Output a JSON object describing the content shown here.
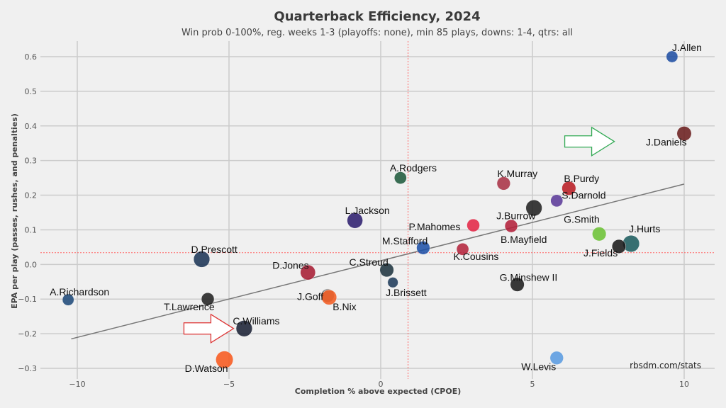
{
  "chart_data": {
    "type": "scatter",
    "title": "Quarterback Efficiency, 2024",
    "subtitle": "Win prob 0-100%, reg. weeks 1-3 (playoffs: none), min 85 plays, downs: 1-4, qtrs: all",
    "xlabel": "Completion % above expected (CPOE)",
    "ylabel": "EPA per play (passes, rushes, and penalties)",
    "xlim": [
      -11.2,
      11.0
    ],
    "ylim": [
      -0.32,
      0.65
    ],
    "xticks": [
      -10,
      -5,
      0,
      5,
      10
    ],
    "yticks": [
      -0.3,
      -0.2,
      -0.1,
      0.0,
      0.1,
      0.2,
      0.3,
      0.4,
      0.5,
      0.6
    ],
    "ytick_labels": [
      "−0.3",
      "−0.2",
      "−0.1",
      "0.0",
      "0.1",
      "0.2",
      "0.3",
      "0.4",
      "0.5",
      "0.6"
    ],
    "xtick_labels": [
      "−10",
      "−5",
      "0",
      "5",
      "10"
    ],
    "grid": true,
    "mean_lines": {
      "x": 0.9,
      "y": 0.034,
      "color": "#ff6666"
    },
    "trend_line": {
      "x1": -10.2,
      "y1": -0.215,
      "x2": 10.0,
      "y2": 0.232,
      "color": "#777777"
    },
    "credit": "rbsdm.com/stats",
    "points": [
      {
        "name": "J.Allen",
        "x": 9.6,
        "y": 0.6,
        "size": 0.9,
        "color": "#1f4fa3"
      },
      {
        "name": "J.Daniels",
        "x": 10.0,
        "y": 0.378,
        "size": 1.15,
        "color": "#6b1f1f"
      },
      {
        "name": "A.Rodgers",
        "x": 0.65,
        "y": 0.25,
        "size": 0.95,
        "color": "#1f5a3c"
      },
      {
        "name": "K.Murray",
        "x": 4.05,
        "y": 0.234,
        "size": 1.05,
        "color": "#a83246"
      },
      {
        "name": "B.Purdy",
        "x": 6.2,
        "y": 0.22,
        "size": 1.1,
        "color": "#b81c23"
      },
      {
        "name": "S.Darnold",
        "x": 5.8,
        "y": 0.184,
        "size": 0.95,
        "color": "#5b3a99"
      },
      {
        "name": "J.Burrow",
        "x": 5.05,
        "y": 0.163,
        "size": 1.3,
        "color": "#222222"
      },
      {
        "name": "L.Jackson",
        "x": -0.85,
        "y": 0.127,
        "size": 1.25,
        "color": "#2e1f6e"
      },
      {
        "name": "P.Mahomes",
        "x": 3.05,
        "y": 0.113,
        "size": 1.0,
        "color": "#e32746"
      },
      {
        "name": "B.Mayfield",
        "x": 4.3,
        "y": 0.111,
        "size": 1.0,
        "color": "#b3203a"
      },
      {
        "name": "G.Smith",
        "x": 7.2,
        "y": 0.088,
        "size": 1.1,
        "color": "#6cc236"
      },
      {
        "name": "J.Hurts",
        "x": 8.25,
        "y": 0.06,
        "size": 1.35,
        "color": "#1d5c5e"
      },
      {
        "name": "J.Fields",
        "x": 7.85,
        "y": 0.052,
        "size": 1.1,
        "color": "#1a1a1a"
      },
      {
        "name": "M.Stafford",
        "x": 1.4,
        "y": 0.048,
        "size": 1.05,
        "color": "#1f52a8"
      },
      {
        "name": "K.Cousins",
        "x": 2.7,
        "y": 0.044,
        "size": 0.95,
        "color": "#b3243c"
      },
      {
        "name": "D.Prescott",
        "x": -5.9,
        "y": 0.015,
        "size": 1.3,
        "color": "#1c3557"
      },
      {
        "name": "C.Stroud",
        "x": 0.2,
        "y": -0.016,
        "size": 1.1,
        "color": "#1f3440"
      },
      {
        "name": "D.Jones",
        "x": -2.4,
        "y": -0.023,
        "size": 1.2,
        "color": "#a61d33"
      },
      {
        "name": "J.Brissett",
        "x": 0.4,
        "y": -0.052,
        "size": 0.8,
        "color": "#1f3b5a"
      },
      {
        "name": "G.Minshew II",
        "x": 4.5,
        "y": -0.058,
        "size": 1.1,
        "color": "#1e1e1e"
      },
      {
        "name": "J.Goff",
        "x": -1.75,
        "y": -0.09,
        "size": 1.05,
        "color": "#7a7a7a"
      },
      {
        "name": "B.Nix",
        "x": -1.7,
        "y": -0.095,
        "size": 1.2,
        "color": "#f25c22"
      },
      {
        "name": "T.Lawrence",
        "x": -5.7,
        "y": -0.1,
        "size": 1.0,
        "color": "#222222"
      },
      {
        "name": "A.Richardson",
        "x": -10.3,
        "y": -0.102,
        "size": 0.9,
        "color": "#1f4a7a"
      },
      {
        "name": "C.Williams",
        "x": -4.5,
        "y": -0.185,
        "size": 1.3,
        "color": "#1b2236"
      },
      {
        "name": "D.Watson",
        "x": -5.15,
        "y": -0.275,
        "size": 1.4,
        "color": "#f7591e"
      },
      {
        "name": "W.Levis",
        "x": 5.8,
        "y": -0.27,
        "size": 1.05,
        "color": "#5a9be0"
      }
    ],
    "arrows": [
      {
        "name": "green-arrow",
        "tip_x": 7.7,
        "tip_y": 0.355,
        "color": "#33aa55"
      },
      {
        "name": "red-arrow",
        "tip_x": -4.85,
        "tip_y": -0.185,
        "color": "#dd3333"
      }
    ]
  }
}
